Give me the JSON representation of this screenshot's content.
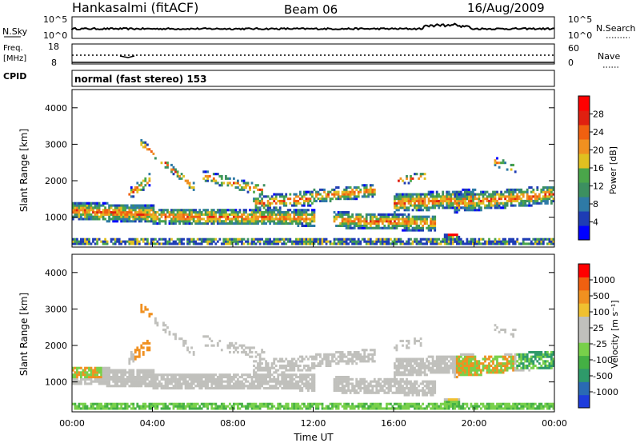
{
  "header": {
    "station": "Hankasalmi (fitACF)",
    "beam": "Beam 06",
    "date": "16/Aug/2009"
  },
  "noise_panel": {
    "left_label": "N.Sky",
    "right_label": "N.Search",
    "left_ticks": [
      "10^5",
      "10^0"
    ],
    "right_ticks": [
      "10^5",
      "10^0"
    ]
  },
  "freq_panel": {
    "left_label_top": "Freq.",
    "left_label_unit": "[MHz]",
    "right_label": "Nave",
    "left_ticks": [
      "18",
      "8"
    ],
    "right_ticks": [
      "60",
      "0"
    ]
  },
  "cpid": {
    "label": "CPID",
    "value": "normal (fast stereo) 153"
  },
  "x_axis": {
    "label": "Time UT",
    "ticks": [
      "00:00",
      "04:00",
      "08:00",
      "12:00",
      "16:00",
      "20:00",
      "00:00"
    ]
  },
  "chart_data": [
    {
      "type": "heatmap",
      "quantity": "Power",
      "ylabel": "Slant Range [km]",
      "yticks": [
        1000,
        2000,
        3000,
        4000
      ],
      "ylim": [
        180,
        4500
      ],
      "xlim_hours": [
        0,
        24
      ],
      "colorbar": {
        "label": "Power [dB]",
        "ticks": [
          "4",
          "8",
          "12",
          "16",
          "20",
          "24",
          "28"
        ],
        "colors": [
          "#0000ff",
          "#1e3cb4",
          "#2e7aa6",
          "#3c9060",
          "#4aa64a",
          "#e0c020",
          "#f09020",
          "#f06010",
          "#e02010",
          "#ff0000"
        ]
      }
    },
    {
      "type": "heatmap",
      "quantity": "Velocity",
      "ylabel": "Slant Range [km]",
      "yticks": [
        1000,
        2000,
        3000,
        4000
      ],
      "ylim": [
        180,
        4500
      ],
      "xlim_hours": [
        0,
        24
      ],
      "colorbar": {
        "label": "Velocity [m s⁻¹]",
        "ticks": [
          "1000",
          "500",
          "100",
          "25",
          "-25",
          "-100",
          "-500",
          "-1000"
        ],
        "colors": [
          "#1e3cdc",
          "#2a6ab4",
          "#2e9a6a",
          "#44b044",
          "#78d04a",
          "#c0c0bc",
          "#c0c0bc",
          "#f0c030",
          "#f09020",
          "#f06010",
          "#ff0000"
        ]
      }
    }
  ]
}
